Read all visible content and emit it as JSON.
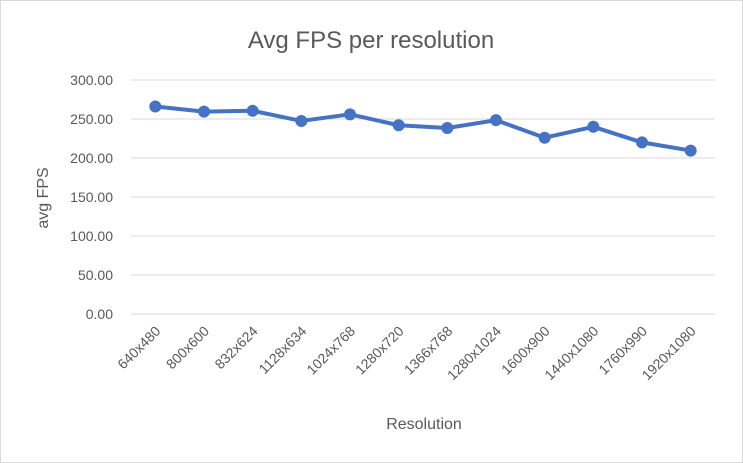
{
  "chart_data": {
    "type": "line",
    "title": "Avg FPS per resolution",
    "xlabel": "Resolution",
    "ylabel": "avg FPS",
    "categories": [
      "640x480",
      "800x600",
      "832x624",
      "1128x634",
      "1024x768",
      "1280x720",
      "1366x768",
      "1280x1024",
      "1600x900",
      "1440x1080",
      "1760x990",
      "1920x1080"
    ],
    "series": [
      {
        "values": [
          266,
          259.5,
          260.5,
          247.5,
          256,
          242,
          238.5,
          248.5,
          226,
          240,
          220,
          209.5
        ]
      }
    ],
    "ylim": [
      0,
      300
    ],
    "yticks": [
      "0.00",
      "50.00",
      "100.00",
      "150.00",
      "200.00",
      "250.00",
      "300.00"
    ],
    "grid": true,
    "legend": "none",
    "colors": {
      "series": "#4472c4",
      "text": "#595959",
      "grid": "#d9d9d9"
    }
  }
}
